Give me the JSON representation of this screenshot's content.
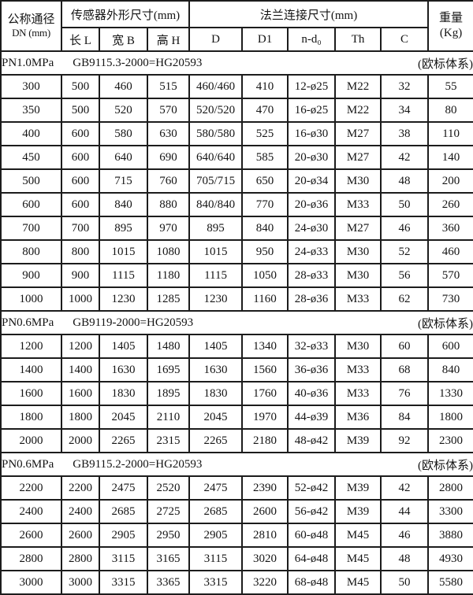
{
  "page": {
    "background": "#ffffff",
    "border_color": "#1c1c1c",
    "text_color": "#141414"
  },
  "table": {
    "header": {
      "dn_title": "公称通径",
      "dn_sub": "DN (mm)",
      "sensor_group": "传感器外形尺寸(mm)",
      "flange_group": "法兰连接尺寸(mm)",
      "weight_title": "重量",
      "weight_sub": "(Kg)",
      "sub_columns": [
        "长 L",
        "宽 B",
        "高 H",
        "D",
        "D1",
        "n-d₀",
        "Th",
        "C"
      ]
    },
    "sections": [
      {
        "pressure": "PN1.0MPa",
        "standard": "GB9115.3-2000=HG20593",
        "note": "(欧标体系)",
        "rows": [
          [
            "300",
            "500",
            "460",
            "515",
            "460/460",
            "410",
            "12-ø25",
            "M22",
            "32",
            "55"
          ],
          [
            "350",
            "500",
            "520",
            "570",
            "520/520",
            "470",
            "16-ø25",
            "M22",
            "34",
            "80"
          ],
          [
            "400",
            "600",
            "580",
            "630",
            "580/580",
            "525",
            "16-ø30",
            "M27",
            "38",
            "110"
          ],
          [
            "450",
            "600",
            "640",
            "690",
            "640/640",
            "585",
            "20-ø30",
            "M27",
            "42",
            "140"
          ],
          [
            "500",
            "600",
            "715",
            "760",
            "705/715",
            "650",
            "20-ø34",
            "M30",
            "48",
            "200"
          ],
          [
            "600",
            "600",
            "840",
            "880",
            "840/840",
            "770",
            "20-ø36",
            "M33",
            "50",
            "260"
          ],
          [
            "700",
            "700",
            "895",
            "970",
            "895",
            "840",
            "24-ø30",
            "M27",
            "46",
            "360"
          ],
          [
            "800",
            "800",
            "1015",
            "1080",
            "1015",
            "950",
            "24-ø33",
            "M30",
            "52",
            "460"
          ],
          [
            "900",
            "900",
            "1115",
            "1180",
            "1115",
            "1050",
            "28-ø33",
            "M30",
            "56",
            "570"
          ],
          [
            "1000",
            "1000",
            "1230",
            "1285",
            "1230",
            "1160",
            "28-ø36",
            "M33",
            "62",
            "730"
          ]
        ]
      },
      {
        "pressure": "PN0.6MPa",
        "standard": "GB9119-2000=HG20593",
        "note": "(欧标体系)",
        "rows": [
          [
            "1200",
            "1200",
            "1405",
            "1480",
            "1405",
            "1340",
            "32-ø33",
            "M30",
            "60",
            "600"
          ],
          [
            "1400",
            "1400",
            "1630",
            "1695",
            "1630",
            "1560",
            "36-ø36",
            "M33",
            "68",
            "840"
          ],
          [
            "1600",
            "1600",
            "1830",
            "1895",
            "1830",
            "1760",
            "40-ø36",
            "M33",
            "76",
            "1330"
          ],
          [
            "1800",
            "1800",
            "2045",
            "2110",
            "2045",
            "1970",
            "44-ø39",
            "M36",
            "84",
            "1800"
          ],
          [
            "2000",
            "2000",
            "2265",
            "2315",
            "2265",
            "2180",
            "48-ø42",
            "M39",
            "92",
            "2300"
          ]
        ]
      },
      {
        "pressure": "PN0.6MPa",
        "standard": "GB9115.2-2000=HG20593",
        "note": "(欧标体系)",
        "rows": [
          [
            "2200",
            "2200",
            "2475",
            "2520",
            "2475",
            "2390",
            "52-ø42",
            "M39",
            "42",
            "2800"
          ],
          [
            "2400",
            "2400",
            "2685",
            "2725",
            "2685",
            "2600",
            "56-ø42",
            "M39",
            "44",
            "3300"
          ],
          [
            "2600",
            "2600",
            "2905",
            "2950",
            "2905",
            "2810",
            "60-ø48",
            "M45",
            "46",
            "3880"
          ],
          [
            "2800",
            "2800",
            "3115",
            "3165",
            "3115",
            "3020",
            "64-ø48",
            "M45",
            "48",
            "4930"
          ],
          [
            "3000",
            "3000",
            "3315",
            "3365",
            "3315",
            "3220",
            "68-ø48",
            "M45",
            "50",
            "5580"
          ]
        ]
      }
    ]
  }
}
